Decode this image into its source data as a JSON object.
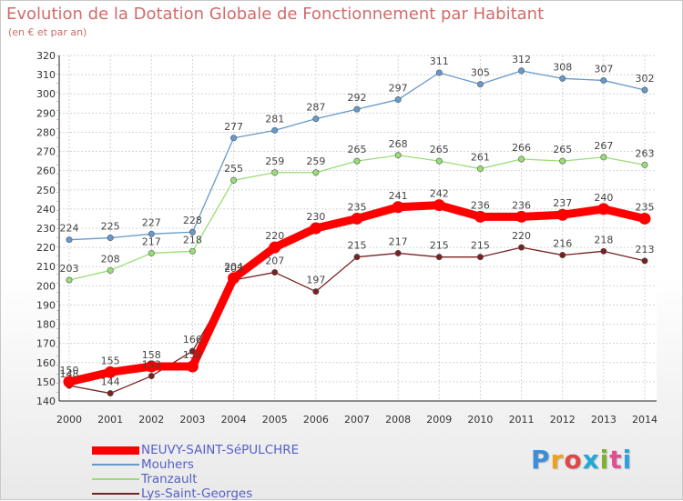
{
  "header": {
    "title": "Evolution de la Dotation Globale de Fonctionnement par Habitant",
    "subtitle": "(en € et par an)"
  },
  "logo": {
    "text": "Proxiti",
    "colors": [
      "#3a8fd8",
      "#f0a020",
      "#e04848",
      "#20a8d8",
      "#80b030",
      "#e05090",
      "#30a0e0"
    ]
  },
  "chart_data": {
    "type": "line",
    "title": "Evolution de la Dotation Globale de Fonctionnement par Habitant",
    "subtitle": "(en € et par an)",
    "xlabel": "",
    "ylabel": "",
    "categories": [
      "2000",
      "2001",
      "2002",
      "2003",
      "2004",
      "2005",
      "2006",
      "2007",
      "2008",
      "2009",
      "2010",
      "2011",
      "2012",
      "2013",
      "2014"
    ],
    "ylim": [
      140,
      320
    ],
    "yticks": [
      140,
      150,
      160,
      170,
      180,
      190,
      200,
      210,
      220,
      230,
      240,
      250,
      260,
      270,
      280,
      290,
      300,
      310,
      320
    ],
    "grid": true,
    "legend_position": "bottom-left",
    "series": [
      {
        "name": "NEUVY-SAINT-SéPULCHRE",
        "color": "#ff0000",
        "values": [
          150,
          155,
          158,
          158,
          204,
          220,
          230,
          235,
          241,
          242,
          236,
          236,
          237,
          240,
          235
        ]
      },
      {
        "name": "Mouhers",
        "color": "#6699cc",
        "values": [
          224,
          225,
          227,
          228,
          277,
          281,
          287,
          292,
          297,
          311,
          305,
          312,
          308,
          307,
          302
        ]
      },
      {
        "name": "Tranzault",
        "color": "#99dd77",
        "values": [
          203,
          208,
          217,
          218,
          255,
          259,
          259,
          265,
          268,
          265,
          261,
          266,
          265,
          267,
          263
        ]
      },
      {
        "name": "Lys-Saint-Georges",
        "color": "#772222",
        "values": [
          148,
          144,
          153,
          166,
          203,
          207,
          197,
          215,
          217,
          215,
          215,
          220,
          216,
          218,
          213
        ]
      }
    ]
  }
}
